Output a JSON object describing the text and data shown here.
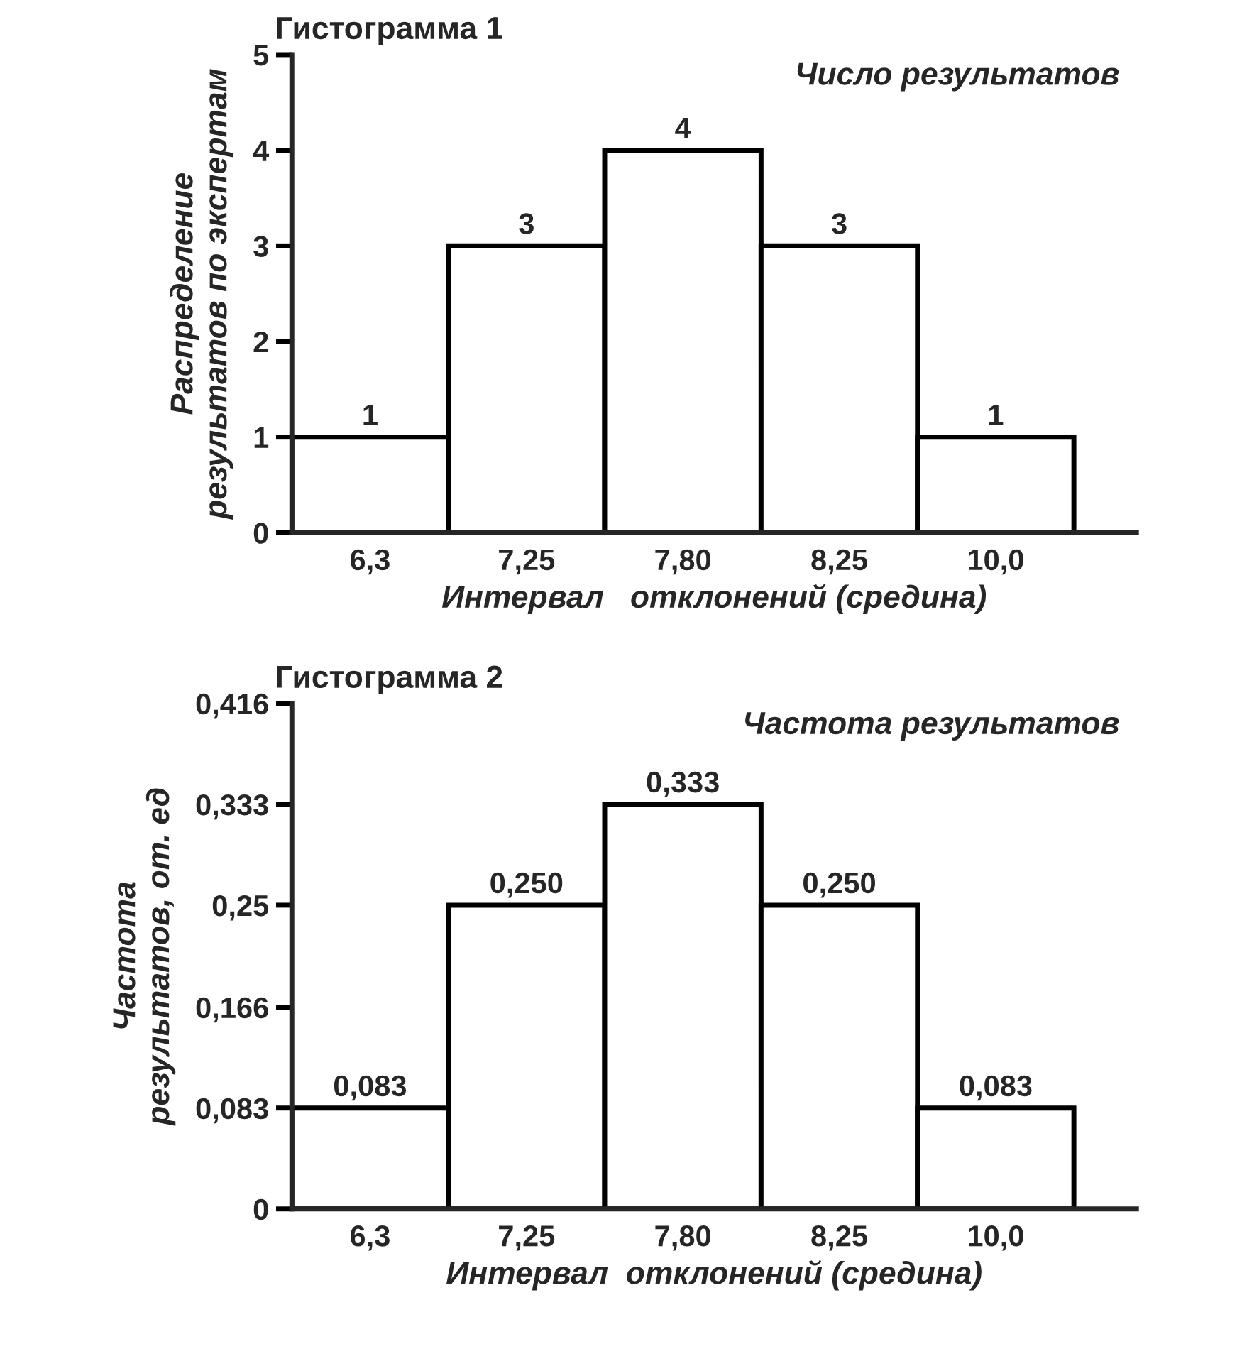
{
  "chart_data": [
    {
      "type": "bar",
      "title": "Гистограмма 1",
      "subtitle": "Число результатов",
      "ylabel": "Распределение\nрезультатов по экспертам",
      "xlabel": "Интервал   отклонений (средина)",
      "categories": [
        "6,3",
        "7,25",
        "7,80",
        "8,25",
        "10,0"
      ],
      "values": [
        1,
        3,
        4,
        3,
        1
      ],
      "color": "#000000",
      "ylim": [
        0,
        5
      ],
      "yticks": [
        0,
        1,
        2,
        3,
        4,
        5
      ],
      "data_labels": true
    },
    {
      "type": "bar",
      "title": "Гистограмма 2",
      "subtitle": "Частота результатов",
      "ylabel": "Частота\nрезультатов, от. ед",
      "xlabel": "Интервал  отклонений (средина)",
      "categories": [
        "6,3",
        "7,25",
        "7,80",
        "8,25",
        "10,0"
      ],
      "values": [
        0.083,
        0.25,
        0.333,
        0.25,
        0.083
      ],
      "color": "#000000",
      "value_labels": [
        "0,083",
        "0,250",
        "0,333",
        "0,250",
        "0,083"
      ],
      "ylim": [
        0,
        0.416
      ],
      "yticks": [
        0,
        {
          "value": 0.083,
          "label": "0,083"
        },
        {
          "value": 0.166,
          "label": "0,166"
        },
        {
          "value": 0.25,
          "label": "0,25"
        },
        {
          "value": 0.333,
          "label": "0,333"
        },
        {
          "value": 0.416,
          "label": "0,416"
        }
      ]
    }
  ]
}
